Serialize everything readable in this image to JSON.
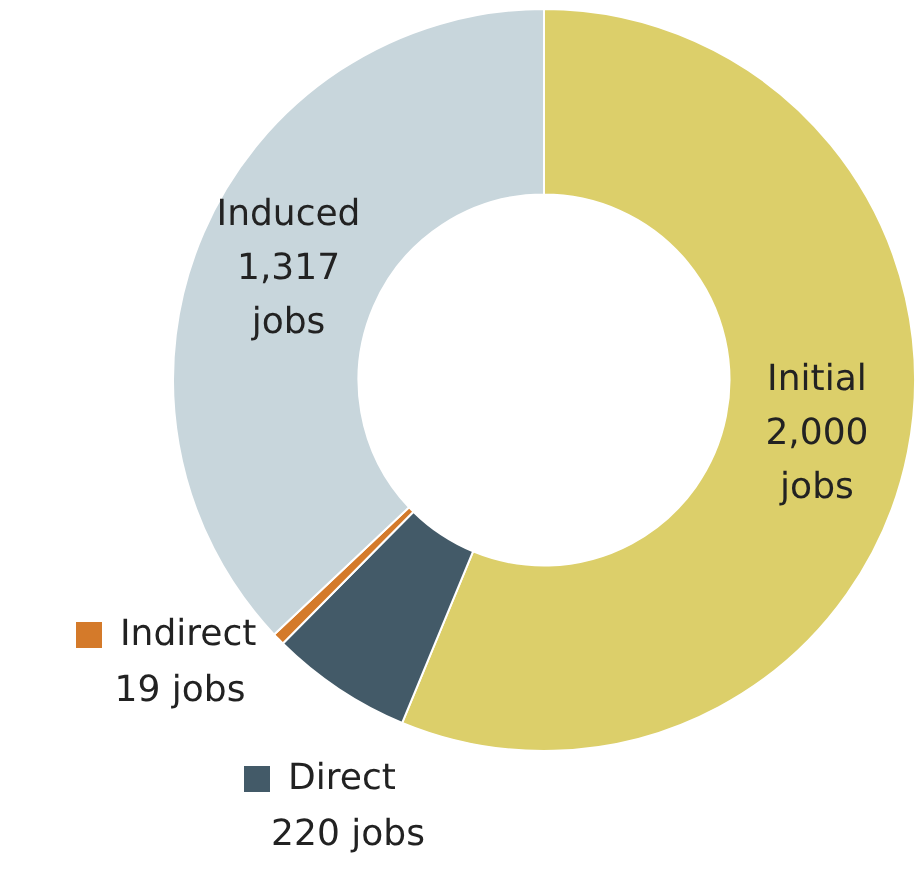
{
  "chart_data": {
    "type": "donut",
    "categories": [
      "Initial",
      "Direct",
      "Indirect",
      "Induced"
    ],
    "values": [
      2000,
      220,
      19,
      1317
    ],
    "value_labels": [
      "2,000 jobs",
      "220 jobs",
      "19 jobs",
      "1,317 jobs"
    ],
    "colors": [
      "#dccf6a",
      "#435a68",
      "#d47a2a",
      "#c8d6dc"
    ],
    "legend": "bottom left"
  }
}
